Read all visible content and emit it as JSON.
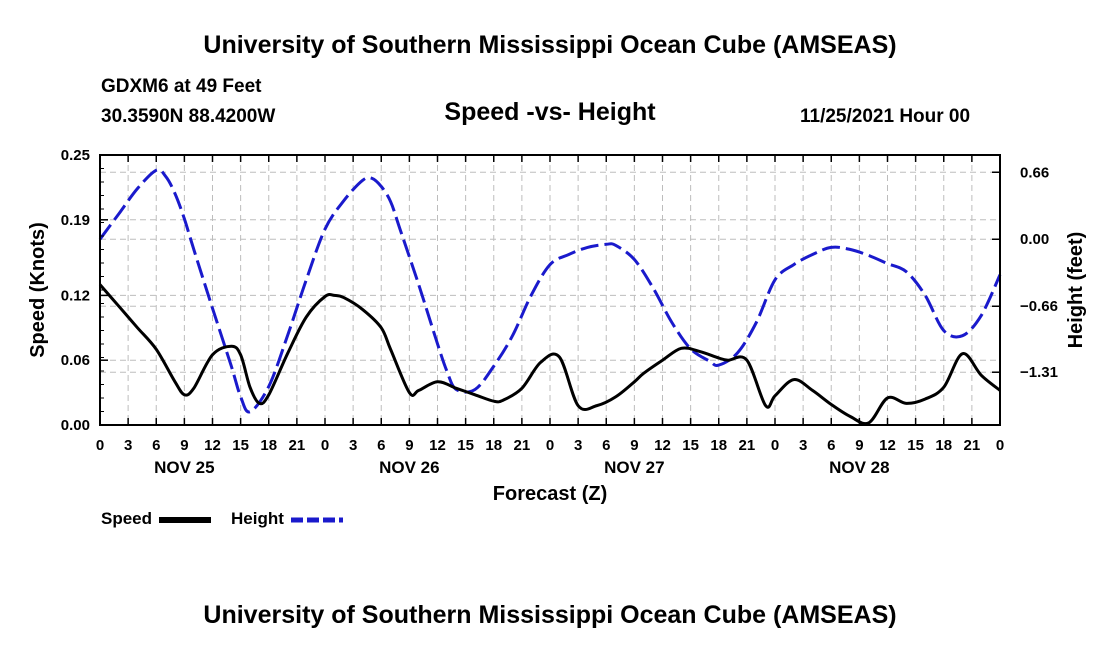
{
  "header": {
    "title": "University of Southern Mississippi Ocean Cube (AMSEAS)",
    "station": "GDXM6 at 49 Feet",
    "coordinates": "30.3590N  88.4200W",
    "subtitle": "Speed -vs- Height",
    "datetime": "11/25/2021 Hour 00"
  },
  "footer": {
    "title": "University of Southern Mississippi Ocean Cube (AMSEAS)"
  },
  "chart_data": {
    "type": "line",
    "xlabel": "Forecast (Z)",
    "ylabel_left": "Speed (Knots)",
    "ylabel_right": "Height (feet)",
    "x_range": [
      0,
      96
    ],
    "x_tick_step_hours": 3,
    "x_tick_labels": [
      "0",
      "3",
      "6",
      "9",
      "12",
      "15",
      "18",
      "21",
      "0",
      "3",
      "6",
      "9",
      "12",
      "15",
      "18",
      "21",
      "0",
      "3",
      "6",
      "9",
      "12",
      "15",
      "18",
      "21",
      "0",
      "3",
      "6",
      "9",
      "12",
      "15",
      "18",
      "21",
      "0"
    ],
    "day_labels": [
      {
        "label": "NOV 25",
        "hour": 9
      },
      {
        "label": "NOV 26",
        "hour": 33
      },
      {
        "label": "NOV 27",
        "hour": 57
      },
      {
        "label": "NOV 28",
        "hour": 81
      }
    ],
    "y_left": {
      "range": [
        0,
        0.25
      ],
      "tick_values": [
        0,
        0.06,
        0.12,
        0.19,
        0.25
      ],
      "tick_labels": [
        "0.00",
        "0.06",
        "0.12",
        "0.19",
        "0.25"
      ]
    },
    "y_right": {
      "range": [
        -1.83,
        0.83
      ],
      "tick_values": [
        -1.31,
        -0.66,
        0,
        0.66
      ],
      "tick_labels": [
        "−1.31",
        "−0.66",
        "0.00",
        "0.66"
      ]
    },
    "grid": true,
    "series": [
      {
        "name": "Speed",
        "axis": "left",
        "color": "#000000",
        "style": "solid",
        "x": [
          0,
          2,
          4,
          6,
          8,
          9,
          10,
          12,
          14,
          15,
          16,
          17,
          18,
          20,
          22,
          24,
          25,
          26,
          28,
          30,
          31,
          33,
          34,
          36,
          38,
          40,
          42,
          43,
          45,
          47,
          49,
          51,
          53,
          55,
          57,
          58,
          60,
          62,
          64,
          66,
          67,
          69,
          71,
          72,
          74,
          76,
          78,
          80,
          82,
          84,
          86,
          88,
          90,
          92,
          94,
          96
        ],
        "values": [
          0.13,
          0.11,
          0.09,
          0.07,
          0.04,
          0.028,
          0.034,
          0.065,
          0.073,
          0.065,
          0.035,
          0.02,
          0.028,
          0.066,
          0.1,
          0.119,
          0.12,
          0.118,
          0.107,
          0.09,
          0.07,
          0.03,
          0.032,
          0.04,
          0.034,
          0.028,
          0.022,
          0.023,
          0.034,
          0.058,
          0.063,
          0.018,
          0.018,
          0.026,
          0.04,
          0.048,
          0.06,
          0.071,
          0.068,
          0.062,
          0.06,
          0.06,
          0.018,
          0.027,
          0.042,
          0.032,
          0.019,
          0.008,
          0.002,
          0.025,
          0.02,
          0.024,
          0.035,
          0.066,
          0.046,
          0.032
        ]
      },
      {
        "name": "Height",
        "axis": "right",
        "color": "#1a1acc",
        "style": "dashed",
        "x": [
          0,
          2,
          4,
          6,
          7,
          8,
          9,
          10,
          12,
          14,
          15,
          16,
          18,
          20,
          22,
          24,
          26,
          28,
          29,
          30,
          31,
          32,
          34,
          36,
          37,
          38,
          40,
          42,
          44,
          46,
          48,
          50,
          52,
          54,
          55,
          57,
          59,
          61,
          63,
          65,
          66,
          68,
          70,
          72,
          74,
          76,
          78,
          80,
          82,
          84,
          86,
          88,
          90,
          92,
          94,
          96
        ],
        "values": [
          0,
          0.25,
          0.5,
          0.68,
          0.62,
          0.45,
          0.2,
          -0.1,
          -0.68,
          -1.25,
          -1.55,
          -1.7,
          -1.45,
          -0.95,
          -0.4,
          0.1,
          0.38,
          0.58,
          0.6,
          0.52,
          0.37,
          0.1,
          -0.45,
          -1.03,
          -1.3,
          -1.48,
          -1.48,
          -1.25,
          -0.95,
          -0.55,
          -0.25,
          -0.15,
          -0.08,
          -0.05,
          -0.06,
          -0.2,
          -0.48,
          -0.82,
          -1.08,
          -1.2,
          -1.24,
          -1.12,
          -0.82,
          -0.4,
          -0.25,
          -0.15,
          -0.08,
          -0.1,
          -0.16,
          -0.24,
          -0.32,
          -0.55,
          -0.9,
          -0.95,
          -0.75,
          -0.35
        ]
      }
    ]
  }
}
